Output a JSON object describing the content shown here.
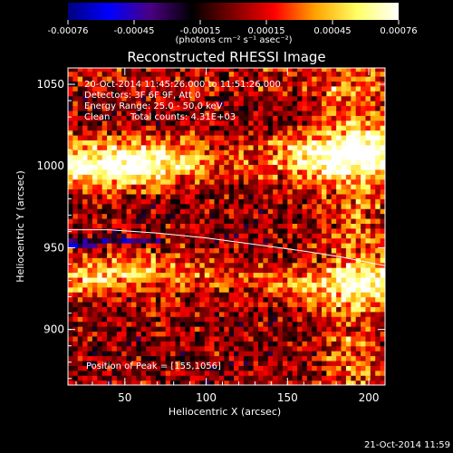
{
  "chart_data": {
    "type": "heatmap",
    "title": "Reconstructed RHESSI Image",
    "xlabel": "Heliocentric X (arcsec)",
    "ylabel": "Heliocentric Y (arcsec)",
    "xlim": [
      15,
      210
    ],
    "ylim": [
      866,
      1060
    ],
    "xticks": [
      50,
      100,
      150,
      200
    ],
    "yticks": [
      900,
      950,
      1000,
      1050
    ],
    "colorbar": {
      "range": [
        -0.00076,
        0.00076
      ],
      "ticks": [
        "-0.00076",
        "-0.00045",
        "-0.00015",
        "0.00015",
        "0.00045",
        "0.00076"
      ],
      "label": "(photons cm⁻² s⁻¹ asec⁻²)",
      "stops": [
        "#00007f",
        "#0000ff",
        "#4b0082",
        "#000000",
        "#7f0000",
        "#ff0000",
        "#ffa500",
        "#ffff66",
        "#ffffff"
      ]
    },
    "annotations": {
      "time": "20-Oct-2014 11:45:26.000 to 11:51:26.000",
      "detectors": "Detectors: 3F 6F 9F, Att 0",
      "energy": "Energy Range: 25.0 - 50.0 keV",
      "clean": "Clean",
      "counts": "Total counts: 4.31E+03",
      "peak": "Position of Peak = [155,1056]"
    },
    "limb_curve": {
      "x": [
        15,
        40,
        70,
        100,
        130,
        160,
        185,
        210
      ],
      "y": [
        961,
        961,
        959,
        956,
        952,
        948,
        944,
        939
      ]
    },
    "emission_bands": [
      {
        "name": "upper",
        "x_center": 100,
        "y_center": 1003,
        "intensity": 0.0006
      },
      {
        "name": "lower",
        "x_center": 110,
        "y_center": 930,
        "intensity": 0.00045
      }
    ]
  },
  "footer": {
    "timestamp": "21-Oct-2014 11:59"
  }
}
